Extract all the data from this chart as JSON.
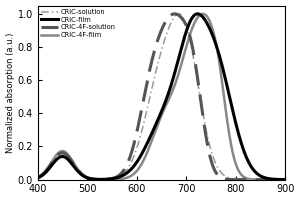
{
  "title": "",
  "xlabel": "",
  "ylabel": "Normalized absorption (a.u.)",
  "xlim": [
    400,
    900
  ],
  "ylim": [
    0.0,
    1.05
  ],
  "yticks": [
    0.0,
    0.2,
    0.4,
    0.6,
    0.8,
    1.0
  ],
  "xticks": [
    400,
    500,
    600,
    700,
    800,
    900
  ],
  "background_color": "#ffffff",
  "cric_sol_color": "#999999",
  "cric_film_color": "#000000",
  "cric4f_sol_color": "#555555",
  "cric4f_film_color": "#888888"
}
